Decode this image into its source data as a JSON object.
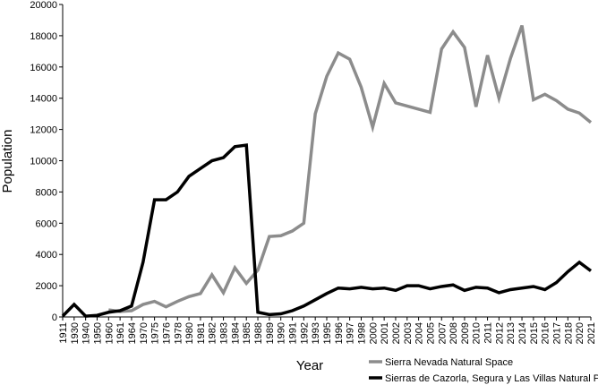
{
  "chart_data": {
    "type": "line",
    "title": "",
    "xlabel": "Year",
    "ylabel": "Population",
    "ylim": [
      0,
      20000
    ],
    "yticks": [
      0,
      2000,
      4000,
      6000,
      8000,
      10000,
      12000,
      14000,
      16000,
      18000,
      20000
    ],
    "grid": false,
    "legend_position": "bottom-right",
    "categories": [
      "1911",
      "1930",
      "1940",
      "1950",
      "1960",
      "1961",
      "1964",
      "1970",
      "1975",
      "1976",
      "1978",
      "1980",
      "1981",
      "1982",
      "1983",
      "1984",
      "1985",
      "1988",
      "1989",
      "1990",
      "1991",
      "1992",
      "1993",
      "1995",
      "1996",
      "1997",
      "1998",
      "2000",
      "2001",
      "2002",
      "2003",
      "2004",
      "2005",
      "2007",
      "2008",
      "2009",
      "2010",
      "2011",
      "2012",
      "2013",
      "2014",
      "2015",
      "2016",
      "2017",
      "2018",
      "2020",
      "2021"
    ],
    "series": [
      {
        "name": "Sierra Nevada Natural Space",
        "color": "#8c8c8c",
        "values": [
          null,
          null,
          null,
          null,
          450,
          350,
          400,
          800,
          1000,
          650,
          1000,
          1300,
          1500,
          2700,
          1550,
          3150,
          2150,
          3000,
          5150,
          5200,
          5500,
          6000,
          13000,
          15400,
          16900,
          16500,
          14700,
          12150,
          14950,
          13700,
          13500,
          13300,
          13100,
          17150,
          18250,
          17250,
          13450,
          16750,
          14000,
          16550,
          18650,
          13900,
          14250,
          13850,
          13300,
          13050,
          12450
        ]
      },
      {
        "name": "Sierras de Cazorla, Segura y Las Villas Natural Park",
        "color": "#000000",
        "values": [
          50,
          800,
          50,
          100,
          300,
          400,
          700,
          3500,
          7500,
          7500,
          8000,
          9000,
          9500,
          10000,
          10200,
          10900,
          11000,
          300,
          150,
          200,
          400,
          700,
          1100,
          1500,
          1850,
          1800,
          1900,
          1800,
          1850,
          1700,
          2000,
          2000,
          1800,
          1950,
          2050,
          1700,
          1900,
          1850,
          1550,
          1750,
          1850,
          1950,
          1750,
          2200,
          2900,
          3500,
          2950
        ]
      }
    ]
  }
}
